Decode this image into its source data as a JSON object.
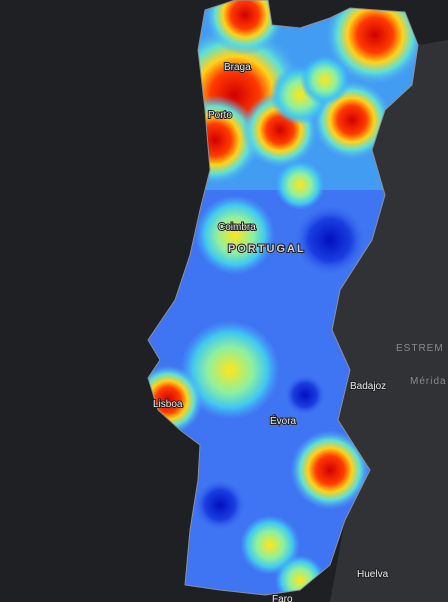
{
  "map": {
    "labels": [
      "Braga",
      "Porto",
      "Coimbra",
      "PORTUGAL",
      "Lisboa",
      "Évora",
      "Badajoz",
      "Mérida",
      "ESTREM",
      "Huelva",
      "Faro"
    ]
  }
}
